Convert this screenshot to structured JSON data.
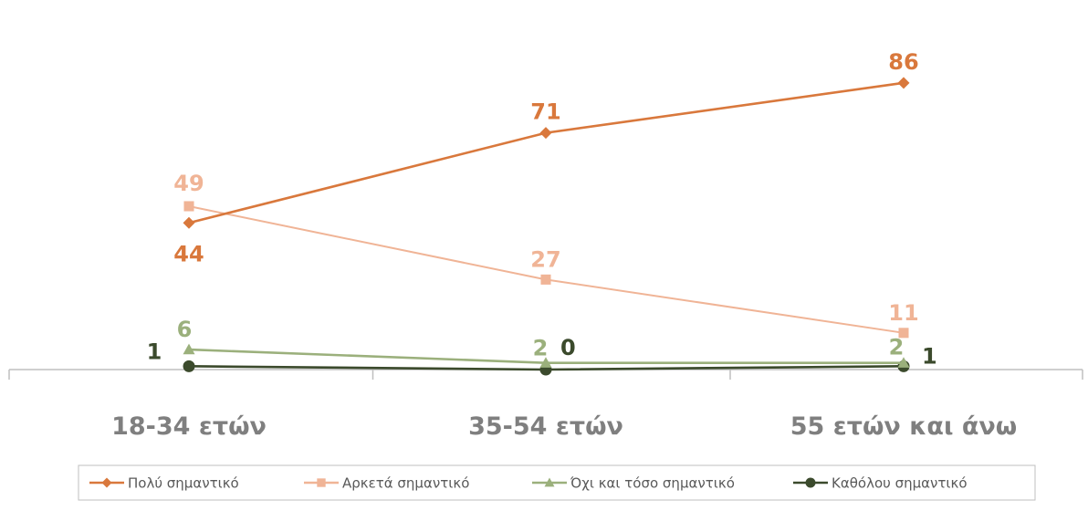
{
  "chart_data": {
    "type": "line",
    "categories": [
      "18-34 ετών",
      "35-54 ετών",
      "55 ετών και άνω"
    ],
    "series": [
      {
        "name": "Πολύ σημαντικό",
        "values": [
          44,
          71,
          86
        ],
        "color": "#d9783c",
        "marker": "diamond"
      },
      {
        "name": "Αρκετά σημαντικό",
        "values": [
          49,
          27,
          11
        ],
        "color": "#f0b496",
        "marker": "square"
      },
      {
        "name": "Όχι και τόσο σημαντικό",
        "values": [
          6,
          2,
          2
        ],
        "color": "#9bb07c",
        "marker": "triangle"
      },
      {
        "name": "Καθόλου σημαντικό",
        "values": [
          1,
          0,
          1
        ],
        "color": "#3b4a2c",
        "marker": "circle"
      }
    ],
    "ylim": [
      0,
      100
    ],
    "grid": false,
    "legend": "bottom"
  }
}
